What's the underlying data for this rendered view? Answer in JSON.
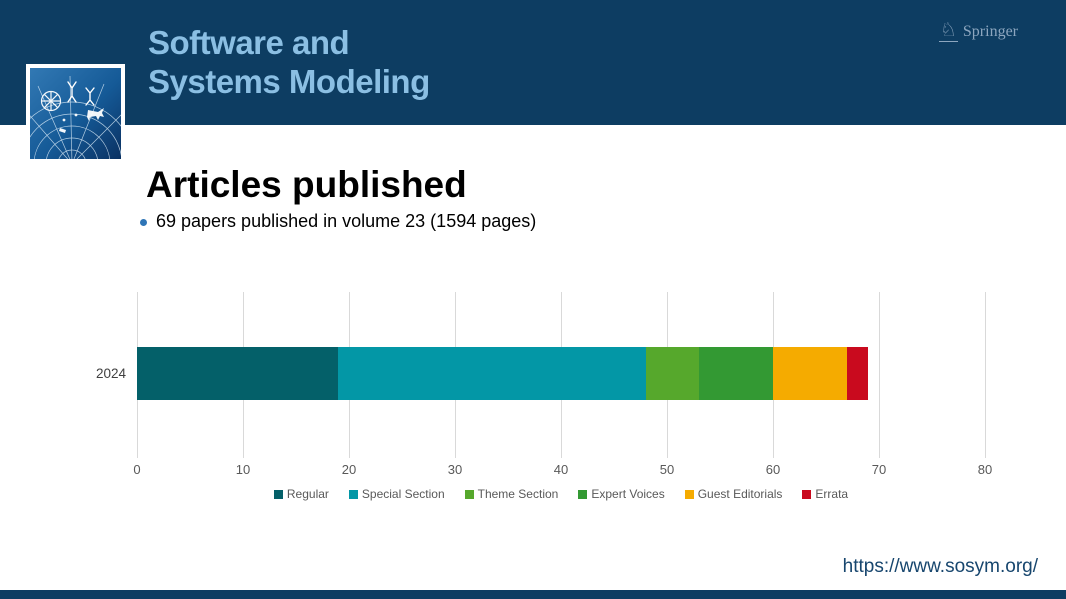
{
  "header": {
    "journal_title_line1": "Software and",
    "journal_title_line2": "Systems Modeling",
    "publisher": "Springer"
  },
  "main": {
    "title": "Articles published",
    "bullet": "69 papers published in volume 23 (1594 pages)"
  },
  "chart_data": {
    "type": "bar",
    "orientation": "horizontal",
    "stacked": true,
    "categories": [
      "2024"
    ],
    "series": [
      {
        "name": "Regular",
        "value": 19,
        "color": "#046069"
      },
      {
        "name": "Special Section",
        "value": 29,
        "color": "#0397a6"
      },
      {
        "name": "Theme Section",
        "value": 5,
        "color": "#56a82c"
      },
      {
        "name": "Expert Voices",
        "value": 7,
        "color": "#339933"
      },
      {
        "name": "Guest Editorials",
        "value": 7,
        "color": "#f5ab00"
      },
      {
        "name": "Errata",
        "value": 2,
        "color": "#c90a1e"
      }
    ],
    "total": 69,
    "xlim": [
      0,
      80
    ],
    "xticks": [
      0,
      10,
      20,
      30,
      40,
      50,
      60,
      70,
      80
    ],
    "grid": "vertical",
    "legend_position": "bottom",
    "title": "",
    "xlabel": "",
    "ylabel": ""
  },
  "footer": {
    "url": "https://www.sosym.org/"
  },
  "theme": {
    "header_bg": "#0d3d62",
    "journal_title_color": "#8bbfe3",
    "springer_color": "#8ca6bf",
    "bullet_color": "#2e75b6",
    "axis_text": "#595959",
    "cat_text": "#404040",
    "grid": "#d9d9d9",
    "url_color": "#17466e"
  }
}
